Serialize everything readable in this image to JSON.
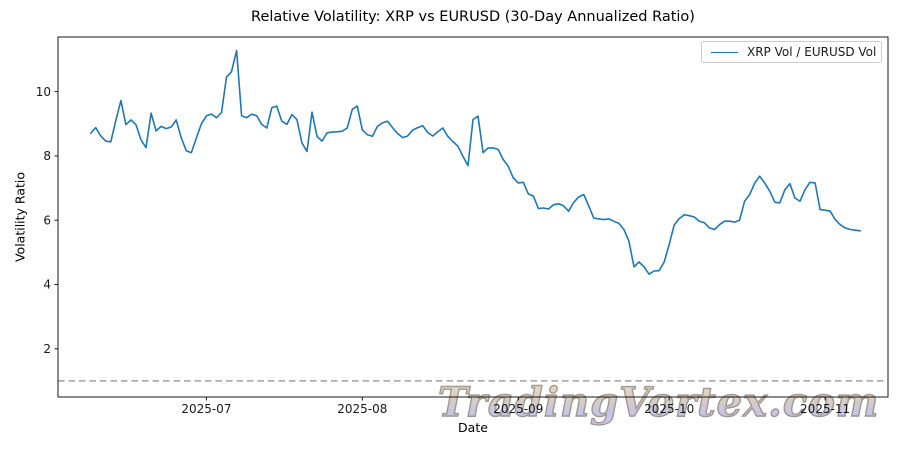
{
  "watermark": {
    "text": "TradingVortex.com"
  },
  "chart_data": {
    "type": "line",
    "title": "Relative Volatility: XRP vs EURUSD (30-Day Annualized Ratio)",
    "xlabel": "Date",
    "ylabel": "Volatility Ratio",
    "grid": false,
    "legend": {
      "position": "upper right",
      "entries": [
        "XRP Vol / EURUSD Vol"
      ]
    },
    "x_epoch": "2025-06-01",
    "x_domain_days": [
      0.5,
      165.5
    ],
    "ylim": [
      0.5,
      11.7
    ],
    "y_ticks": [
      2,
      4,
      6,
      8,
      10
    ],
    "x_ticks": [
      {
        "date": "2025-07-01",
        "label": "2025-07"
      },
      {
        "date": "2025-08-01",
        "label": "2025-08"
      },
      {
        "date": "2025-09-01",
        "label": "2025-09"
      },
      {
        "date": "2025-10-01",
        "label": "2025-10"
      },
      {
        "date": "2025-11-01",
        "label": "2025-11"
      }
    ],
    "reference_line": {
      "value": 1.0,
      "style": "dashed",
      "color": "#7f7f7f"
    },
    "series": [
      {
        "name": "XRP Vol / EURUSD Vol",
        "color": "#1f77b4",
        "points": [
          [
            "2025-06-08",
            8.7
          ],
          [
            "2025-06-09",
            8.88
          ],
          [
            "2025-06-10",
            8.62
          ],
          [
            "2025-06-11",
            8.46
          ],
          [
            "2025-06-12",
            8.44
          ],
          [
            "2025-06-13",
            9.1
          ],
          [
            "2025-06-14",
            9.72
          ],
          [
            "2025-06-15",
            8.97
          ],
          [
            "2025-06-16",
            9.12
          ],
          [
            "2025-06-17",
            8.97
          ],
          [
            "2025-06-18",
            8.5
          ],
          [
            "2025-06-19",
            8.26
          ],
          [
            "2025-06-20",
            9.33
          ],
          [
            "2025-06-21",
            8.78
          ],
          [
            "2025-06-22",
            8.92
          ],
          [
            "2025-06-23",
            8.85
          ],
          [
            "2025-06-24",
            8.9
          ],
          [
            "2025-06-25",
            9.12
          ],
          [
            "2025-06-26",
            8.57
          ],
          [
            "2025-06-27",
            8.16
          ],
          [
            "2025-06-28",
            8.1
          ],
          [
            "2025-06-29",
            8.55
          ],
          [
            "2025-06-30",
            9.0
          ],
          [
            "2025-07-01",
            9.25
          ],
          [
            "2025-07-02",
            9.3
          ],
          [
            "2025-07-03",
            9.19
          ],
          [
            "2025-07-04",
            9.35
          ],
          [
            "2025-07-05",
            10.45
          ],
          [
            "2025-07-06",
            10.62
          ],
          [
            "2025-07-07",
            11.28
          ],
          [
            "2025-07-08",
            9.25
          ],
          [
            "2025-07-09",
            9.19
          ],
          [
            "2025-07-10",
            9.3
          ],
          [
            "2025-07-11",
            9.25
          ],
          [
            "2025-07-12",
            8.98
          ],
          [
            "2025-07-13",
            8.87
          ],
          [
            "2025-07-14",
            9.5
          ],
          [
            "2025-07-15",
            9.55
          ],
          [
            "2025-07-16",
            9.08
          ],
          [
            "2025-07-17",
            8.98
          ],
          [
            "2025-07-18",
            9.29
          ],
          [
            "2025-07-19",
            9.13
          ],
          [
            "2025-07-20",
            8.4
          ],
          [
            "2025-07-21",
            8.14
          ],
          [
            "2025-07-22",
            9.36
          ],
          [
            "2025-07-23",
            8.6
          ],
          [
            "2025-07-24",
            8.46
          ],
          [
            "2025-07-25",
            8.72
          ],
          [
            "2025-07-26",
            8.74
          ],
          [
            "2025-07-27",
            8.75
          ],
          [
            "2025-07-28",
            8.77
          ],
          [
            "2025-07-29",
            8.87
          ],
          [
            "2025-07-30",
            9.45
          ],
          [
            "2025-07-31",
            9.55
          ],
          [
            "2025-08-01",
            8.81
          ],
          [
            "2025-08-02",
            8.66
          ],
          [
            "2025-08-03",
            8.61
          ],
          [
            "2025-08-04",
            8.92
          ],
          [
            "2025-08-05",
            9.03
          ],
          [
            "2025-08-06",
            9.08
          ],
          [
            "2025-08-07",
            8.88
          ],
          [
            "2025-08-08",
            8.7
          ],
          [
            "2025-08-09",
            8.57
          ],
          [
            "2025-08-10",
            8.62
          ],
          [
            "2025-08-11",
            8.8
          ],
          [
            "2025-08-12",
            8.88
          ],
          [
            "2025-08-13",
            8.94
          ],
          [
            "2025-08-14",
            8.73
          ],
          [
            "2025-08-15",
            8.62
          ],
          [
            "2025-08-16",
            8.75
          ],
          [
            "2025-08-17",
            8.87
          ],
          [
            "2025-08-18",
            8.61
          ],
          [
            "2025-08-19",
            8.45
          ],
          [
            "2025-08-20",
            8.3
          ],
          [
            "2025-08-21",
            7.99
          ],
          [
            "2025-08-22",
            7.7
          ],
          [
            "2025-08-23",
            9.13
          ],
          [
            "2025-08-24",
            9.24
          ],
          [
            "2025-08-25",
            8.1
          ],
          [
            "2025-08-26",
            8.25
          ],
          [
            "2025-08-27",
            8.25
          ],
          [
            "2025-08-28",
            8.2
          ],
          [
            "2025-08-29",
            7.89
          ],
          [
            "2025-08-30",
            7.68
          ],
          [
            "2025-08-31",
            7.32
          ],
          [
            "2025-09-01",
            7.16
          ],
          [
            "2025-09-02",
            7.18
          ],
          [
            "2025-09-03",
            6.82
          ],
          [
            "2025-09-04",
            6.75
          ],
          [
            "2025-09-05",
            6.36
          ],
          [
            "2025-09-06",
            6.38
          ],
          [
            "2025-09-07",
            6.35
          ],
          [
            "2025-09-08",
            6.48
          ],
          [
            "2025-09-09",
            6.51
          ],
          [
            "2025-09-10",
            6.45
          ],
          [
            "2025-09-11",
            6.28
          ],
          [
            "2025-09-12",
            6.55
          ],
          [
            "2025-09-13",
            6.72
          ],
          [
            "2025-09-14",
            6.8
          ],
          [
            "2025-09-15",
            6.45
          ],
          [
            "2025-09-16",
            6.07
          ],
          [
            "2025-09-17",
            6.04
          ],
          [
            "2025-09-18",
            6.02
          ],
          [
            "2025-09-19",
            6.04
          ],
          [
            "2025-09-20",
            5.97
          ],
          [
            "2025-09-21",
            5.9
          ],
          [
            "2025-09-22",
            5.71
          ],
          [
            "2025-09-23",
            5.35
          ],
          [
            "2025-09-24",
            4.55
          ],
          [
            "2025-09-25",
            4.7
          ],
          [
            "2025-09-26",
            4.55
          ],
          [
            "2025-09-27",
            4.32
          ],
          [
            "2025-09-28",
            4.42
          ],
          [
            "2025-09-29",
            4.43
          ],
          [
            "2025-09-30",
            4.7
          ],
          [
            "2025-10-01",
            5.25
          ],
          [
            "2025-10-02",
            5.85
          ],
          [
            "2025-10-03",
            6.05
          ],
          [
            "2025-10-04",
            6.17
          ],
          [
            "2025-10-05",
            6.14
          ],
          [
            "2025-10-06",
            6.1
          ],
          [
            "2025-10-07",
            5.97
          ],
          [
            "2025-10-08",
            5.92
          ],
          [
            "2025-10-09",
            5.76
          ],
          [
            "2025-10-10",
            5.71
          ],
          [
            "2025-10-11",
            5.86
          ],
          [
            "2025-10-12",
            5.97
          ],
          [
            "2025-10-13",
            5.97
          ],
          [
            "2025-10-14",
            5.94
          ],
          [
            "2025-10-15",
            6.0
          ],
          [
            "2025-10-16",
            6.59
          ],
          [
            "2025-10-17",
            6.8
          ],
          [
            "2025-10-18",
            7.15
          ],
          [
            "2025-10-19",
            7.37
          ],
          [
            "2025-10-20",
            7.15
          ],
          [
            "2025-10-21",
            6.9
          ],
          [
            "2025-10-22",
            6.56
          ],
          [
            "2025-10-23",
            6.54
          ],
          [
            "2025-10-24",
            6.95
          ],
          [
            "2025-10-25",
            7.14
          ],
          [
            "2025-10-26",
            6.69
          ],
          [
            "2025-10-27",
            6.59
          ],
          [
            "2025-10-28",
            6.95
          ],
          [
            "2025-10-29",
            7.18
          ],
          [
            "2025-10-30",
            7.16
          ],
          [
            "2025-10-31",
            6.33
          ],
          [
            "2025-11-01",
            6.31
          ],
          [
            "2025-11-02",
            6.28
          ],
          [
            "2025-11-03",
            6.02
          ],
          [
            "2025-11-04",
            5.86
          ],
          [
            "2025-11-05",
            5.76
          ],
          [
            "2025-11-06",
            5.71
          ],
          [
            "2025-11-07",
            5.69
          ],
          [
            "2025-11-08",
            5.67
          ]
        ]
      }
    ]
  }
}
